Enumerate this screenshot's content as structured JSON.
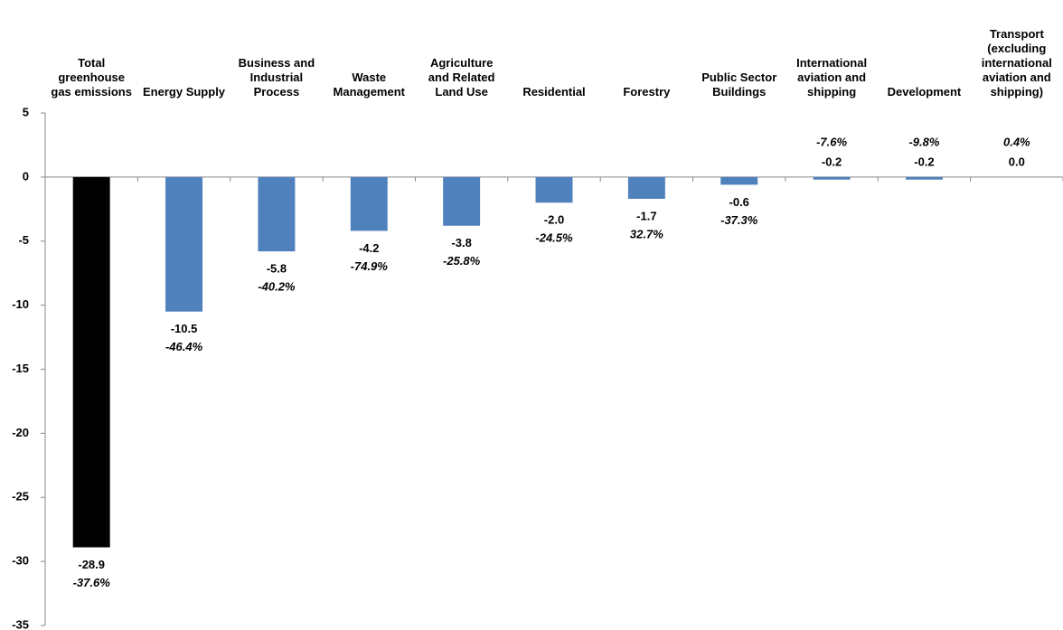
{
  "chart_data": {
    "type": "bar",
    "categories": [
      "Total greenhouse gas emissions",
      "Energy Supply",
      "Business and Industrial Process",
      "Waste Management",
      "Agriculture and Related Land Use",
      "Residential",
      "Forestry",
      "Public Sector Buildings",
      "International aviation and shipping",
      "Development",
      "Transport (excluding international aviation and shipping)"
    ],
    "values": [
      -28.9,
      -10.5,
      -5.8,
      -4.2,
      -3.8,
      -2.0,
      -1.7,
      -0.6,
      -0.2,
      -0.2,
      0.0
    ],
    "value_labels": [
      "-28.9",
      "-10.5",
      "-5.8",
      "-4.2",
      "-3.8",
      "-2.0",
      "-1.7",
      "-0.6",
      "-0.2",
      "-0.2",
      "0.0"
    ],
    "percent_changes": [
      -37.6,
      -46.4,
      -40.2,
      -74.9,
      -25.8,
      -24.5,
      32.7,
      -37.3,
      -7.6,
      -9.8,
      0.4
    ],
    "percent_change_labels": [
      "-37.6%",
      "-46.4%",
      "-40.2%",
      "-74.9%",
      "-25.8%",
      "-24.5%",
      "32.7%",
      "-37.3%",
      "-7.6%",
      "-9.8%",
      "0.4%"
    ],
    "colors": [
      "#000000",
      "#4f81bd",
      "#4f81bd",
      "#4f81bd",
      "#4f81bd",
      "#4f81bd",
      "#4f81bd",
      "#4f81bd",
      "#4f81bd",
      "#4f81bd",
      "#4f81bd"
    ],
    "ylim": [
      -35,
      5
    ],
    "yticks": [
      5,
      0,
      -5,
      -10,
      -15,
      -20,
      -25,
      -30,
      -35
    ]
  }
}
